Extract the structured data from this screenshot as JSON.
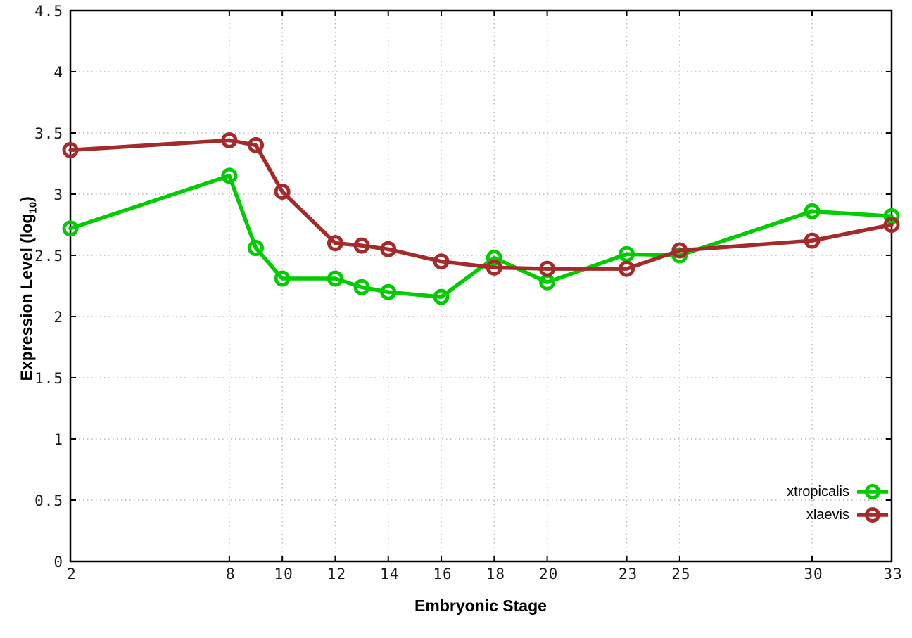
{
  "figure": {
    "xlabel": "Embryonic Stage",
    "ylabel_prefix": "Expression Level (log",
    "ylabel_sub": "10",
    "ylabel_suffix": ")"
  },
  "chart_data": {
    "type": "line",
    "title": "",
    "xlabel": "Embryonic Stage",
    "ylabel": "Expression Level (log10)",
    "xlim": [
      2,
      33
    ],
    "ylim": [
      0,
      4.5
    ],
    "grid": true,
    "grid_style": "dotted",
    "legend_position": "bottom-right",
    "x": [
      2,
      8,
      9,
      10,
      12,
      13,
      14,
      16,
      18,
      20,
      23,
      25,
      30,
      33
    ],
    "x_tick_values": [
      2,
      8,
      10,
      12,
      14,
      16,
      18,
      20,
      23,
      25,
      30,
      33
    ],
    "x_tick_labels": [
      "2",
      "8",
      "10",
      "12",
      "14",
      "16",
      "18",
      "20",
      "23",
      "25",
      "30",
      "33"
    ],
    "y_tick_values": [
      0,
      0.5,
      1,
      1.5,
      2,
      2.5,
      3,
      3.5,
      4,
      4.5
    ],
    "y_tick_labels": [
      "0",
      "0.5",
      "1",
      "1.5",
      "2",
      "2.5",
      "3",
      "3.5",
      "4",
      "4.5"
    ],
    "series": [
      {
        "name": "xtropicalis",
        "color": "#00cc00",
        "values": [
          2.72,
          3.15,
          2.56,
          2.31,
          2.31,
          2.24,
          2.2,
          2.16,
          2.48,
          2.28,
          2.51,
          2.5,
          2.86,
          2.82
        ]
      },
      {
        "name": "xlaevis",
        "color": "#a52a2a",
        "values": [
          3.36,
          3.44,
          3.4,
          3.02,
          2.6,
          2.58,
          2.55,
          2.45,
          2.4,
          2.39,
          2.39,
          2.54,
          2.62,
          2.75
        ]
      }
    ],
    "colors": {
      "grid": "#b9b9b9",
      "border": "#000000",
      "tick_label": "#1a1a1a"
    }
  }
}
